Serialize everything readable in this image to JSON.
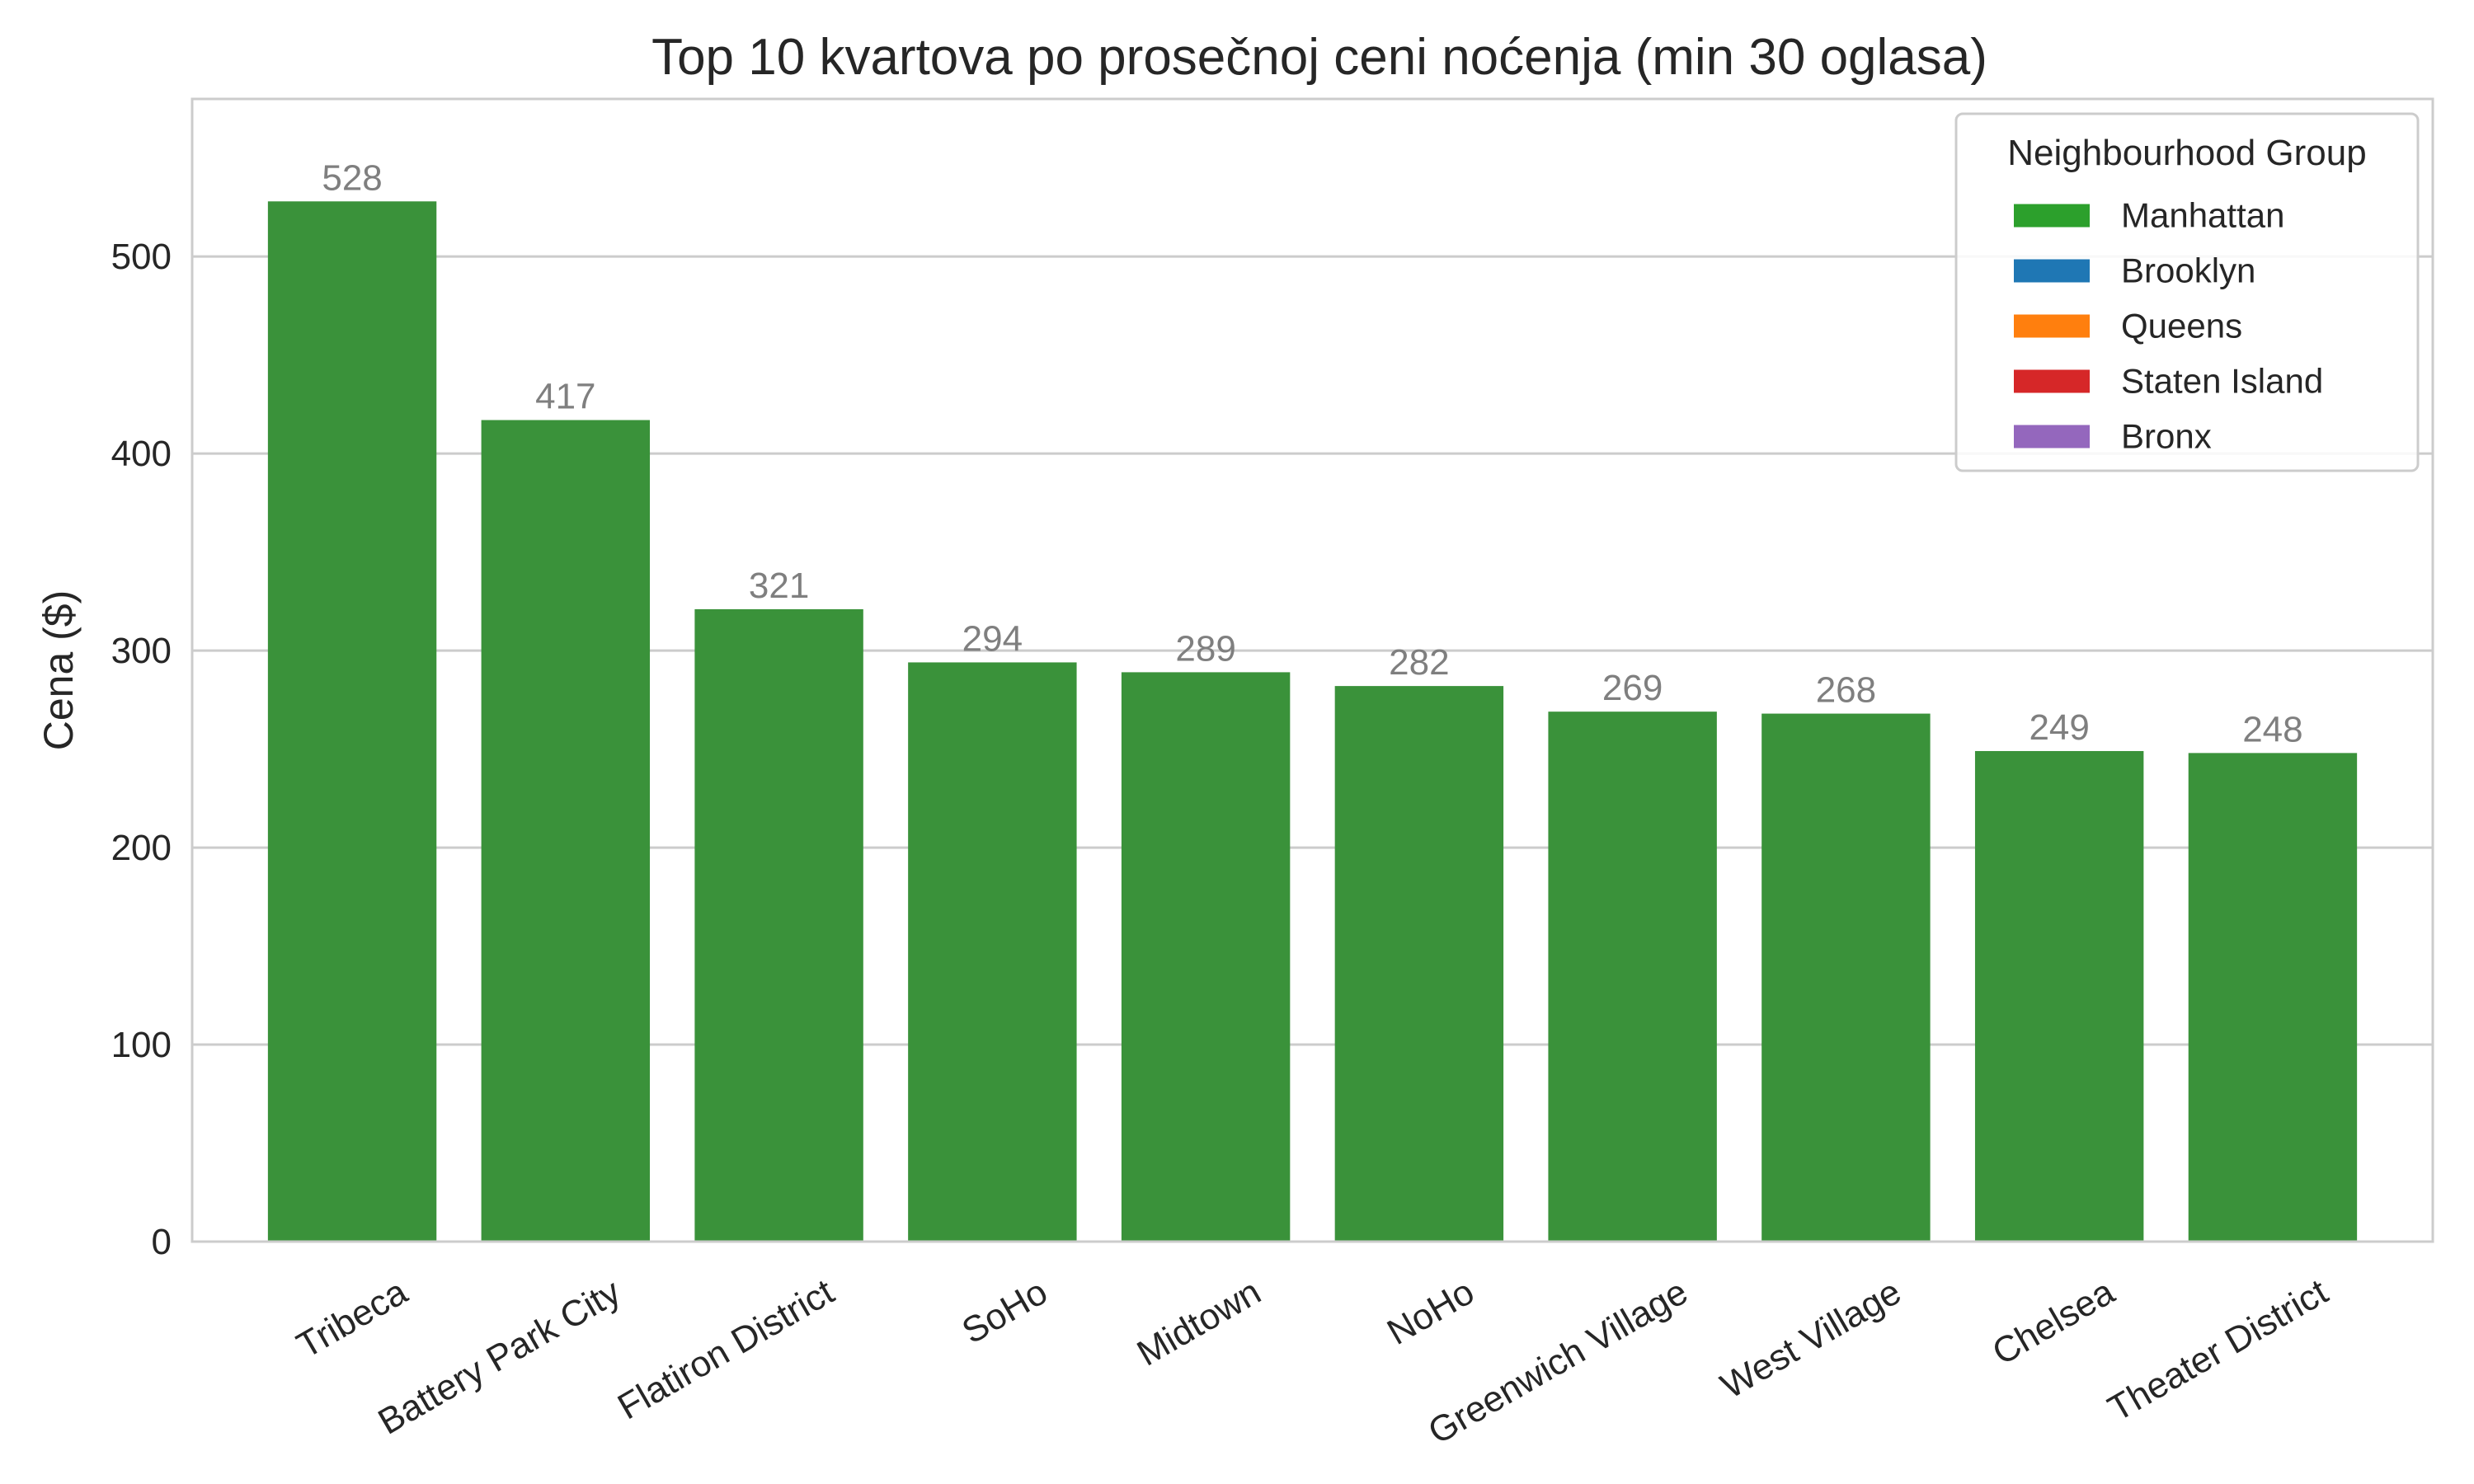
{
  "chart_data": {
    "type": "bar",
    "title": "Top 10 kvartova po prosečnoj ceni noćenja (min 30 oglasa)",
    "xlabel": "",
    "ylabel": "Cena ($)",
    "ylim": [
      0,
      580
    ],
    "yticks": [
      0,
      100,
      200,
      300,
      400,
      500
    ],
    "grid": true,
    "categories": [
      "Tribeca",
      "Battery Park City",
      "Flatiron District",
      "SoHo",
      "Midtown",
      "NoHo",
      "Greenwich Village",
      "West Village",
      "Chelsea",
      "Theater District"
    ],
    "values": [
      528,
      417,
      321,
      294,
      289,
      282,
      269,
      268,
      249,
      248
    ],
    "data_labels": [
      "528",
      "417",
      "321",
      "294",
      "289",
      "282",
      "269",
      "268",
      "249",
      "248"
    ],
    "bar_group": [
      "Manhattan",
      "Manhattan",
      "Manhattan",
      "Manhattan",
      "Manhattan",
      "Manhattan",
      "Manhattan",
      "Manhattan",
      "Manhattan",
      "Manhattan"
    ],
    "legend": {
      "title": "Neighbourhood Group",
      "placement": "top-right",
      "items": [
        {
          "label": "Manhattan",
          "color": "#2ca02c"
        },
        {
          "label": "Brooklyn",
          "color": "#1f77b4"
        },
        {
          "label": "Queens",
          "color": "#ff7f0e"
        },
        {
          "label": "Staten Island",
          "color": "#d62728"
        },
        {
          "label": "Bronx",
          "color": "#9467bd"
        }
      ]
    },
    "colors": {
      "bar": "#3a923a",
      "grid": "#cccccc",
      "axes": "#cccccc",
      "data_label": "#7f7f7f"
    }
  }
}
